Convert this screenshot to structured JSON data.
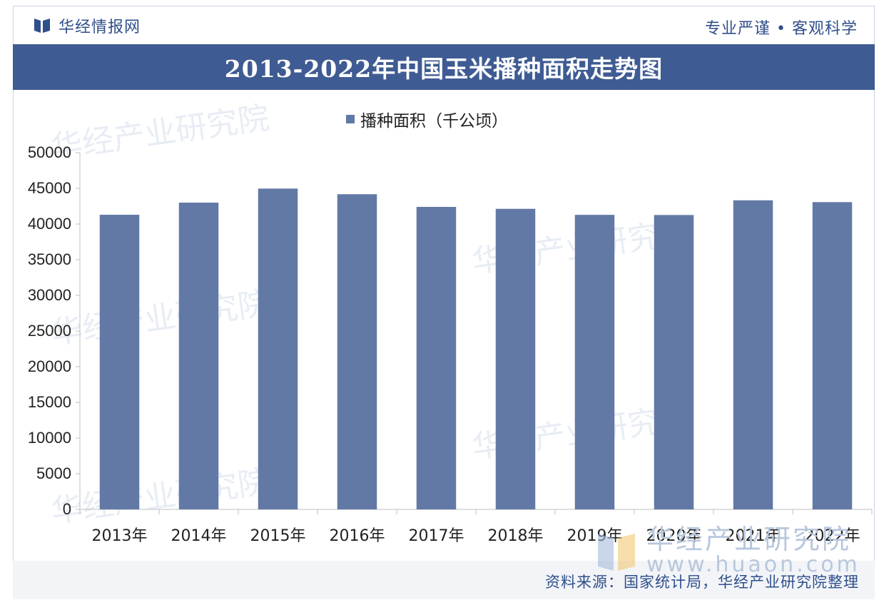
{
  "header": {
    "brand": "华经情报网",
    "slogan": "专业严谨 • 客观科学"
  },
  "chart_title": "2013-2022年中国玉米播种面积走势图",
  "footer": {
    "source": "资料来源：国家统计局，华经产业研究院整理"
  },
  "watermark": {
    "text": "华经产业研究院",
    "url": "www.huaon.com"
  },
  "colors": {
    "bar": "#6279a6",
    "title_bar": "#3f5b93",
    "brand_text": "#2f4f8a"
  },
  "chart_data": {
    "type": "bar",
    "categories": [
      "2013年",
      "2014年",
      "2015年",
      "2016年",
      "2017年",
      "2018年",
      "2019年",
      "2020年",
      "2021年",
      "2022年"
    ],
    "series": [
      {
        "name": "播种面积（千公顷）",
        "values": [
          41299,
          42997,
          44968,
          44178,
          42399,
          42130,
          41284,
          41264,
          43324,
          43070
        ]
      }
    ],
    "ylim": [
      0,
      50000
    ],
    "yticks": [
      0,
      5000,
      10000,
      15000,
      20000,
      25000,
      30000,
      35000,
      40000,
      45000,
      50000
    ],
    "legend_position": "top-center",
    "grid": false
  }
}
